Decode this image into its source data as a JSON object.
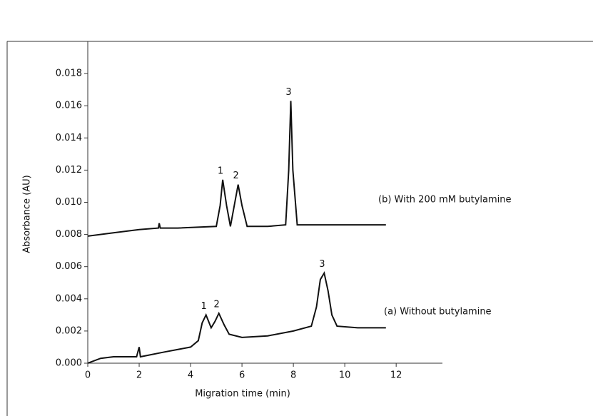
{
  "chart_data": {
    "type": "line",
    "x_label": "Migration time (min)",
    "y_label": "Absorbance (AU)",
    "xlim": [
      0,
      13.8
    ],
    "ylim": [
      0,
      0.02
    ],
    "xticks": [
      0,
      2,
      4,
      6,
      8,
      10,
      12
    ],
    "yticks": [
      {
        "value": 0,
        "label": "0.000"
      },
      {
        "value": 0.002,
        "label": "0.002"
      },
      {
        "value": 0.004,
        "label": "0.004"
      },
      {
        "value": 0.006,
        "label": "0.006"
      },
      {
        "value": 0.008,
        "label": "0.008"
      },
      {
        "value": 0.01,
        "label": "0.010"
      },
      {
        "value": 0.012,
        "label": "0.012"
      },
      {
        "value": 0.014,
        "label": "0.014"
      },
      {
        "value": 0.016,
        "label": "0.016"
      },
      {
        "value": 0.018,
        "label": "0.018"
      }
    ],
    "series": [
      {
        "name": "(b) With 200 mM butylamine",
        "color": "#111111",
        "x": [
          0,
          1,
          2,
          2.75,
          2.78,
          2.82,
          3.5,
          5.0,
          5.15,
          5.25,
          5.4,
          5.55,
          5.7,
          5.85,
          6.0,
          6.2,
          7.0,
          7.7,
          7.82,
          7.9,
          7.98,
          8.15,
          9,
          10,
          11,
          11.6
        ],
        "values": [
          0.0079,
          0.0081,
          0.0083,
          0.0084,
          0.0087,
          0.0084,
          0.0084,
          0.0085,
          0.0098,
          0.0114,
          0.0098,
          0.0085,
          0.0098,
          0.0111,
          0.0098,
          0.0085,
          0.0085,
          0.0086,
          0.012,
          0.0163,
          0.012,
          0.0086,
          0.0086,
          0.0086,
          0.0086,
          0.0086
        ]
      },
      {
        "name": "(a) Without butylamine",
        "color": "#111111",
        "x": [
          0,
          0.5,
          1.0,
          1.9,
          2.0,
          2.05,
          3.0,
          4.0,
          4.3,
          4.45,
          4.6,
          4.8,
          4.95,
          5.1,
          5.3,
          5.5,
          6.0,
          7.0,
          8.0,
          8.7,
          8.9,
          9.05,
          9.2,
          9.35,
          9.5,
          9.7,
          10.5,
          11.6
        ],
        "values": [
          0.0,
          0.0003,
          0.0004,
          0.0004,
          0.001,
          0.0004,
          0.0007,
          0.001,
          0.0014,
          0.0025,
          0.003,
          0.0022,
          0.0026,
          0.0031,
          0.0024,
          0.0018,
          0.0016,
          0.0017,
          0.002,
          0.0023,
          0.0035,
          0.0052,
          0.0056,
          0.0045,
          0.003,
          0.0023,
          0.0022,
          0.0022
        ]
      }
    ],
    "annotations": [
      {
        "text": "1",
        "x": 5.25,
        "y": 0.0114
      },
      {
        "text": "2",
        "x": 5.85,
        "y": 0.0111
      },
      {
        "text": "3",
        "x": 7.9,
        "y": 0.0163
      },
      {
        "text": "1",
        "x": 4.6,
        "y": 0.003
      },
      {
        "text": "2",
        "x": 5.1,
        "y": 0.0031
      },
      {
        "text": "3",
        "x": 9.2,
        "y": 0.0056
      }
    ]
  }
}
